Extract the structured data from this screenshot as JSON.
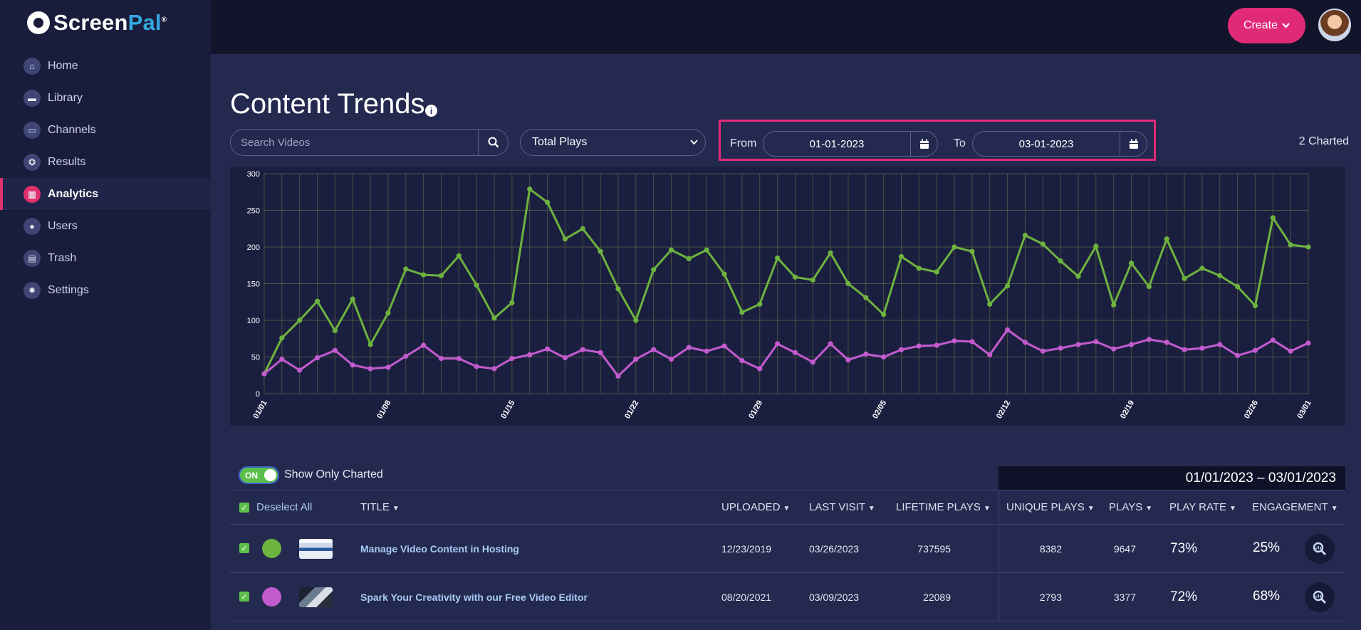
{
  "brand": {
    "name_a": "Screen",
    "name_b": "Pal",
    "mark": "®"
  },
  "nav": [
    {
      "label": "Home",
      "icon": "home-icon",
      "glyph": "⌂"
    },
    {
      "label": "Library",
      "icon": "folder-icon",
      "glyph": "▬"
    },
    {
      "label": "Channels",
      "icon": "monitor-icon",
      "glyph": "▭"
    },
    {
      "label": "Results",
      "icon": "award-icon",
      "glyph": "✪"
    },
    {
      "label": "Analytics",
      "icon": "chart-icon",
      "glyph": "▥",
      "active": true
    },
    {
      "label": "Users",
      "icon": "user-icon",
      "glyph": "●"
    },
    {
      "label": "Trash",
      "icon": "trash-icon",
      "glyph": "▤"
    },
    {
      "label": "Settings",
      "icon": "gear-icon",
      "glyph": "✹"
    }
  ],
  "topbar": {
    "create_label": "Create"
  },
  "page": {
    "title": "Content Trends",
    "info_glyph": "i"
  },
  "filters": {
    "search_placeholder": "Search Videos",
    "metric_selected": "Total Plays",
    "from_label": "From",
    "from_value": "01-01-2023",
    "to_label": "To",
    "to_value": "03-01-2023",
    "charted_count": "2 Charted"
  },
  "chart_data": {
    "type": "line",
    "ylim": [
      0,
      300
    ],
    "yticks": [
      0,
      50,
      100,
      150,
      200,
      250,
      300
    ],
    "x_tick_labels": [
      "01/01",
      "01/08",
      "01/15",
      "01/22",
      "01/29",
      "02/05",
      "02/12",
      "02/19",
      "02/26",
      "03/01"
    ],
    "x_tick_days": [
      0,
      7,
      14,
      21,
      28,
      35,
      42,
      49,
      56,
      59
    ],
    "grid": true,
    "series": [
      {
        "color": "#6db33f",
        "values": [
          27,
          76,
          100,
          126,
          86,
          129,
          67,
          110,
          170,
          162,
          161,
          188,
          148,
          103,
          124,
          279,
          261,
          211,
          225,
          194,
          143,
          100,
          169,
          196,
          184,
          196,
          163,
          111,
          122,
          185,
          159,
          155,
          192,
          150,
          131,
          108,
          187,
          171,
          166,
          200,
          194,
          122,
          147,
          216,
          204,
          181,
          160,
          201,
          121,
          178,
          146,
          211,
          157,
          171,
          161,
          146,
          120,
          240,
          203,
          200
        ]
      },
      {
        "color": "#c35bcf",
        "values": [
          27,
          47,
          32,
          49,
          59,
          39,
          34,
          36,
          51,
          66,
          48,
          48,
          37,
          34,
          48,
          53,
          61,
          49,
          60,
          56,
          24,
          47,
          60,
          47,
          63,
          58,
          65,
          45,
          34,
          68,
          56,
          43,
          68,
          46,
          54,
          50,
          60,
          65,
          66,
          72,
          71,
          53,
          87,
          70,
          58,
          62,
          67,
          71,
          61,
          67,
          74,
          70,
          60,
          62,
          67,
          52,
          59,
          73,
          58,
          69
        ]
      }
    ]
  },
  "table": {
    "toggle_on": "ON",
    "toggle_label": "Show Only Charted",
    "date_range": "01/01/2023 – 03/01/2023",
    "deselect_label": "Deselect All",
    "headers": {
      "title": "TITLE",
      "uploaded": "UPLOADED",
      "last_visit": "LAST VISIT",
      "lifetime": "LIFETIME PLAYS",
      "unique": "UNIQUE PLAYS",
      "plays": "PLAYS",
      "play_rate": "PLAY RATE",
      "engagement": "ENGAGEMENT"
    },
    "rows": [
      {
        "color": "#6db33f",
        "title": "Manage Video Content in Hosting",
        "uploaded": "12/23/2019",
        "last_visit": "03/26/2023",
        "lifetime": "737595",
        "unique": "8382",
        "plays": "9647",
        "play_rate": "73%",
        "engagement": "25%"
      },
      {
        "color": "#c35bcf",
        "title": "Spark Your Creativity with our Free Video Editor",
        "uploaded": "08/20/2021",
        "last_visit": "03/09/2023",
        "lifetime": "22089",
        "unique": "2793",
        "plays": "3377",
        "play_rate": "72%",
        "engagement": "68%"
      }
    ]
  }
}
